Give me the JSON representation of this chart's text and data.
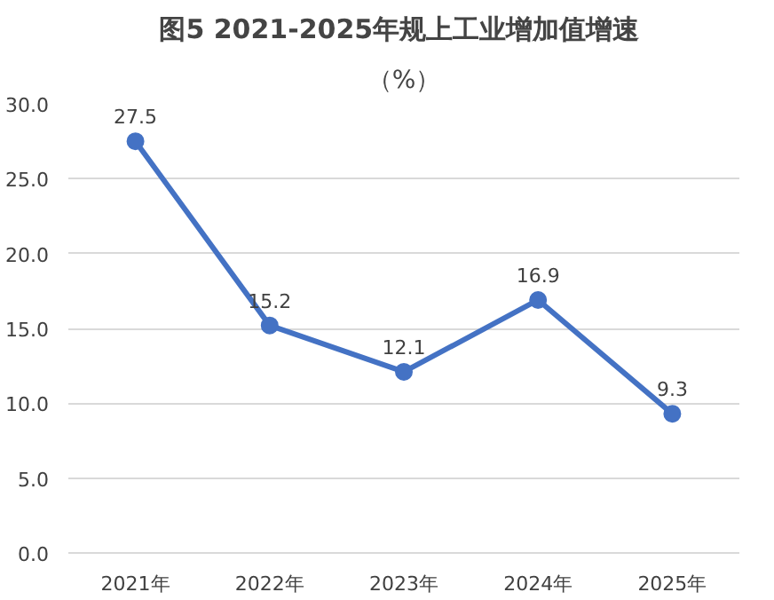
{
  "chart_data": {
    "type": "line",
    "title": "图5  2021-2025年规上工业增加值增速",
    "subtitle": "（%）",
    "categories": [
      "2021年",
      "2022年",
      "2023年",
      "2024年",
      "2025年"
    ],
    "series": [
      {
        "color": "#4472c4",
        "values": [
          27.5,
          15.2,
          12.1,
          16.9,
          9.3
        ]
      }
    ],
    "ylim": [
      0,
      30
    ],
    "yticks": [
      {
        "value": 0,
        "label": "0.0"
      },
      {
        "value": 5,
        "label": "5.0"
      },
      {
        "value": 10,
        "label": "10.0"
      },
      {
        "value": 15,
        "label": "15.0"
      },
      {
        "value": 20,
        "label": "20.0"
      },
      {
        "value": 25,
        "label": "25.0"
      },
      {
        "value": 30,
        "label": "30.0"
      }
    ],
    "grid": "y",
    "data_labels": true,
    "marker": "circle",
    "line_style": "solid"
  }
}
